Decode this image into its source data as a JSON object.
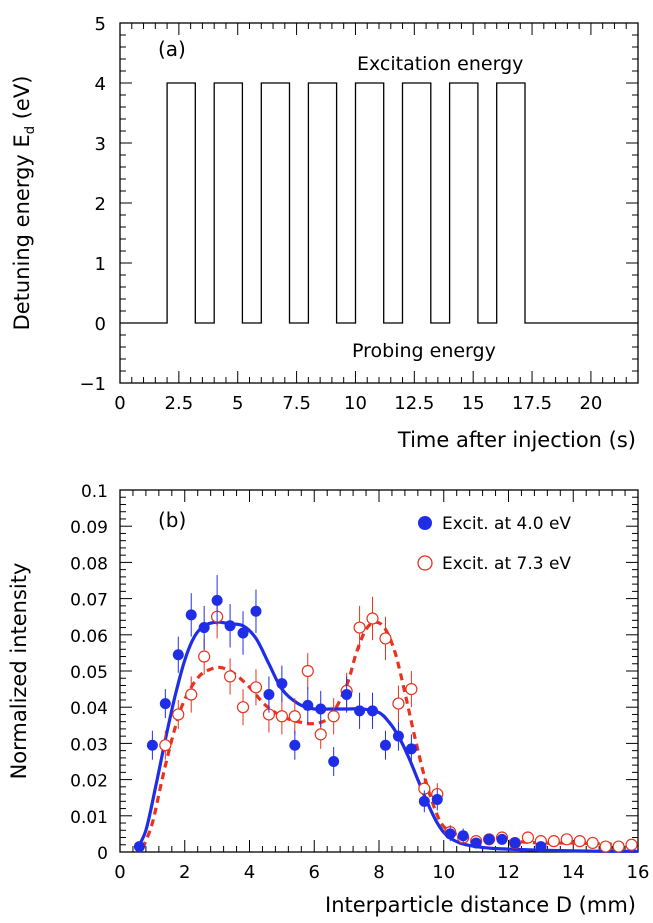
{
  "chart_data": [
    {
      "type": "line",
      "panel_label": "(a)",
      "xlabel": "Time after injection (s)",
      "ylabel_main": "Detuning energy E",
      "ylabel_sub": "d",
      "ylabel_unit": " (eV)",
      "xlim": [
        0,
        22
      ],
      "ylim": [
        -1,
        5
      ],
      "xticks": [
        0,
        2.5,
        5,
        7.5,
        10,
        12.5,
        15,
        17.5,
        20
      ],
      "xtick_labels": [
        "0",
        "2.5",
        "5",
        "7.5",
        "10",
        "12.5",
        "15",
        "17.5",
        "20"
      ],
      "yticks": [
        -1,
        0,
        1,
        2,
        3,
        4,
        5
      ],
      "ytick_labels": [
        "−1",
        "0",
        "1",
        "2",
        "3",
        "4",
        "5"
      ],
      "annotations": [
        "Excitation energy",
        "Probing energy"
      ],
      "series": [
        {
          "x": [
            0,
            2,
            2,
            3.2,
            3.2,
            4,
            4,
            5.2,
            5.2,
            6,
            6,
            7.2,
            7.2,
            8,
            8,
            9.2,
            9.2,
            10,
            10,
            11.2,
            11.2,
            12,
            12,
            13.2,
            13.2,
            14,
            14,
            15.2,
            15.2,
            16,
            16,
            17.2,
            17.2,
            22
          ],
          "y": [
            0,
            0,
            4,
            4,
            0,
            0,
            4,
            4,
            0,
            0,
            4,
            4,
            0,
            0,
            4,
            4,
            0,
            0,
            4,
            4,
            0,
            0,
            4,
            4,
            0,
            0,
            4,
            4,
            0,
            0,
            4,
            4,
            0,
            0
          ]
        }
      ]
    },
    {
      "type": "scatter",
      "panel_label": "(b)",
      "xlabel": "Interparticle distance D (mm)",
      "ylabel": "Normalized intensity",
      "xlim": [
        0,
        16
      ],
      "ylim": [
        0,
        0.1
      ],
      "xticks": [
        0,
        2,
        4,
        6,
        8,
        10,
        12,
        14,
        16
      ],
      "xtick_labels": [
        "0",
        "2",
        "4",
        "6",
        "8",
        "10",
        "12",
        "14",
        "16"
      ],
      "yticks": [
        0,
        0.01,
        0.02,
        0.03,
        0.04,
        0.05,
        0.06,
        0.07,
        0.08,
        0.09,
        0.1
      ],
      "ytick_labels": [
        "0",
        "0.01",
        "0.02",
        "0.03",
        "0.04",
        "0.05",
        "0.06",
        "0.07",
        "0.08",
        "0.09",
        "0.1"
      ],
      "legend_position": "top-right",
      "colors": {
        "blue": "#1f2ee6",
        "red": "#e8331e"
      },
      "series": [
        {
          "name": "Excit. at 4.0 eV",
          "marker": "filled-circle",
          "color": "#1f2ee6",
          "x": [
            0.6,
            1.0,
            1.4,
            1.8,
            2.2,
            2.6,
            3.0,
            3.4,
            3.8,
            4.2,
            4.6,
            5.0,
            5.4,
            5.8,
            6.2,
            6.6,
            7.0,
            7.4,
            7.8,
            8.2,
            8.6,
            9.0,
            9.4,
            9.8,
            10.2,
            10.6,
            11.0,
            11.4,
            11.8,
            12.2,
            13.0
          ],
          "y": [
            0.0015,
            0.0295,
            0.041,
            0.0545,
            0.0655,
            0.062,
            0.0695,
            0.0625,
            0.0605,
            0.0665,
            0.0435,
            0.0465,
            0.0295,
            0.0405,
            0.0395,
            0.025,
            0.0435,
            0.039,
            0.039,
            0.0295,
            0.032,
            0.0285,
            0.014,
            0.0145,
            0.005,
            0.0045,
            0.0025,
            0.0035,
            0.0035,
            0.0025,
            0.0015
          ],
          "err": [
            0.001,
            0.004,
            0.004,
            0.005,
            0.006,
            0.006,
            0.007,
            0.006,
            0.006,
            0.006,
            0.005,
            0.005,
            0.004,
            0.005,
            0.005,
            0.004,
            0.005,
            0.005,
            0.005,
            0.004,
            0.004,
            0.004,
            0.003,
            0.003,
            0.002,
            0.002,
            0.0015,
            0.0015,
            0.0015,
            0.0015,
            0.001
          ],
          "fit": {
            "x": [
              0.5,
              0.8,
              1.1,
              1.4,
              1.7,
              2.0,
              2.3,
              2.6,
              3.0,
              3.4,
              3.8,
              4.2,
              4.6,
              5.0,
              5.5,
              6.0,
              6.5,
              7.0,
              7.5,
              8.0,
              8.3,
              8.6,
              8.9,
              9.2,
              9.5,
              9.8,
              10.1,
              10.5,
              11.0,
              11.5,
              12.0,
              13.0,
              14.0,
              15.0,
              16.0
            ],
            "y": [
              0.0005,
              0.006,
              0.018,
              0.031,
              0.043,
              0.053,
              0.0595,
              0.0625,
              0.0635,
              0.063,
              0.0625,
              0.059,
              0.052,
              0.045,
              0.041,
              0.0395,
              0.0395,
              0.0395,
              0.0395,
              0.0385,
              0.036,
              0.032,
              0.0265,
              0.02,
              0.0135,
              0.008,
              0.0045,
              0.0025,
              0.0015,
              0.001,
              0.0008,
              0.0005,
              0.0003,
              0.0002,
              0.0002
            ]
          }
        },
        {
          "name": "Excit. at 7.3 eV",
          "marker": "open-circle",
          "color": "#e8331e",
          "x": [
            1.4,
            1.8,
            2.2,
            2.6,
            3.0,
            3.4,
            3.8,
            4.2,
            4.6,
            5.0,
            5.4,
            5.8,
            6.2,
            6.6,
            7.0,
            7.4,
            7.8,
            8.2,
            8.6,
            9.0,
            9.4,
            9.8,
            10.2,
            10.6,
            11.0,
            11.4,
            11.8,
            12.2,
            12.6,
            13.0,
            13.4,
            13.8,
            14.2,
            14.6,
            15.0,
            15.4,
            15.8
          ],
          "y": [
            0.0295,
            0.038,
            0.0435,
            0.054,
            0.065,
            0.0485,
            0.04,
            0.0455,
            0.038,
            0.0375,
            0.0375,
            0.05,
            0.0325,
            0.0375,
            0.0445,
            0.062,
            0.0645,
            0.059,
            0.041,
            0.045,
            0.0175,
            0.016,
            0.0055,
            0.004,
            0.003,
            0.0035,
            0.004,
            0.0025,
            0.004,
            0.003,
            0.003,
            0.0035,
            0.003,
            0.0025,
            0.0015,
            0.0015,
            0.002
          ],
          "err": [
            0.004,
            0.004,
            0.005,
            0.005,
            0.006,
            0.005,
            0.005,
            0.005,
            0.005,
            0.005,
            0.005,
            0.005,
            0.004,
            0.005,
            0.005,
            0.006,
            0.006,
            0.006,
            0.005,
            0.005,
            0.003,
            0.003,
            0.002,
            0.0015,
            0.0015,
            0.0015,
            0.0015,
            0.0015,
            0.0015,
            0.0015,
            0.0015,
            0.0015,
            0.0015,
            0.0015,
            0.0015,
            0.0015,
            0.0015
          ],
          "fit": {
            "x": [
              0.7,
              1.0,
              1.3,
              1.6,
              1.9,
              2.2,
              2.5,
              2.8,
              3.1,
              3.5,
              4.0,
              4.5,
              5.0,
              5.5,
              6.0,
              6.5,
              7.0,
              7.3,
              7.6,
              7.9,
              8.2,
              8.5,
              8.8,
              9.1,
              9.4,
              9.7,
              10.0,
              10.5,
              11.0,
              12.0,
              13.0,
              14.0,
              15.0,
              16.0
            ],
            "y": [
              0.001,
              0.008,
              0.02,
              0.031,
              0.04,
              0.0455,
              0.049,
              0.0505,
              0.051,
              0.0495,
              0.0455,
              0.0405,
              0.0375,
              0.036,
              0.0355,
              0.0375,
              0.046,
              0.055,
              0.0615,
              0.0635,
              0.0615,
              0.055,
              0.044,
              0.032,
              0.021,
              0.0125,
              0.007,
              0.0045,
              0.0035,
              0.003,
              0.0025,
              0.0025,
              0.0022,
              0.002
            ]
          }
        }
      ]
    }
  ]
}
